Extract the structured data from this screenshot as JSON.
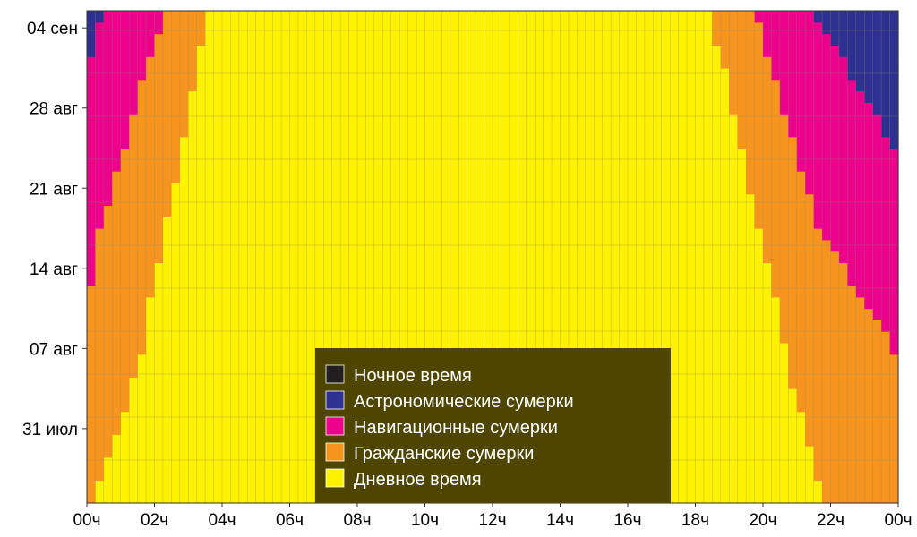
{
  "chart_data": {
    "type": "heatmap",
    "x_tick_labels": [
      "00ч",
      "02ч",
      "04ч",
      "06ч",
      "08ч",
      "10ч",
      "12ч",
      "14ч",
      "16ч",
      "18ч",
      "20ч",
      "22ч",
      "00ч"
    ],
    "y_tick_labels": [
      {
        "label": "31 июл",
        "day": 6
      },
      {
        "label": "07 авг",
        "day": 13
      },
      {
        "label": "14 авг",
        "day": 20
      },
      {
        "label": "21 авг",
        "day": 27
      },
      {
        "label": "28 авг",
        "day": 34
      },
      {
        "label": "04 сен",
        "day": 41
      }
    ],
    "date_range": {
      "start": "2024-07-25",
      "end": "2024-09-05"
    },
    "x_range_hours": [
      0,
      24
    ],
    "grid": true,
    "categories": [
      {
        "name": "Ночное время",
        "color": "#231f20"
      },
      {
        "name": "Астрономические сумерки",
        "color": "#2e3192"
      },
      {
        "name": "Навигационные сумерки",
        "color": "#ec008c"
      },
      {
        "name": "Гражданские сумерки",
        "color": "#f7941d"
      },
      {
        "name": "Дневное время",
        "color": "#fff200"
      }
    ],
    "boundaries_hours": [
      {
        "date": "2024-07-25",
        "sunrise": 0.2,
        "sunset": 21.8,
        "dawn_civil": 0.0,
        "dusk_civil": 24.0,
        "dawn_naut": 0.0,
        "dusk_naut": 24.0,
        "dawn_astro": 0.0,
        "dusk_astro": 24.0
      },
      {
        "date": "2024-07-30",
        "sunrise": 0.8,
        "sunset": 21.3,
        "dawn_civil": 0.0,
        "dusk_civil": 24.0,
        "dawn_naut": 0.0,
        "dusk_naut": 24.0,
        "dawn_astro": 0.0,
        "dusk_astro": 24.0
      },
      {
        "date": "2024-08-06",
        "sunrise": 1.6,
        "sunset": 20.7,
        "dawn_civil": 0.0,
        "dusk_civil": 24.0,
        "dawn_naut": 0.0,
        "dusk_naut": 24.0,
        "dawn_astro": 0.0,
        "dusk_astro": 24.0
      },
      {
        "date": "2024-08-10",
        "sunrise": 1.8,
        "sunset": 20.5,
        "dawn_civil": 0.0,
        "dusk_civil": 23.3,
        "dawn_naut": 0.0,
        "dusk_naut": 24.0,
        "dawn_astro": 0.0,
        "dusk_astro": 24.0
      },
      {
        "date": "2024-08-17",
        "sunrise": 2.3,
        "sunset": 19.9,
        "dawn_civil": 0.3,
        "dusk_civil": 21.7,
        "dawn_naut": 0.0,
        "dusk_naut": 24.0,
        "dawn_astro": 0.0,
        "dusk_astro": 24.0
      },
      {
        "date": "2024-08-24",
        "sunrise": 2.8,
        "sunset": 19.4,
        "dawn_civil": 1.1,
        "dusk_civil": 21.0,
        "dawn_naut": 0.0,
        "dusk_naut": 24.0,
        "dawn_astro": 0.0,
        "dusk_astro": 24.0
      },
      {
        "date": "2024-08-31",
        "sunrise": 3.2,
        "sunset": 18.9,
        "dawn_civil": 1.7,
        "dusk_civil": 20.3,
        "dawn_naut": 0.0,
        "dusk_naut": 22.6,
        "dawn_astro": 0.0,
        "dusk_astro": 24.0
      },
      {
        "date": "2024-09-05",
        "sunrise": 3.6,
        "sunset": 18.4,
        "dawn_civil": 2.3,
        "dusk_civil": 19.8,
        "dawn_naut": 0.4,
        "dusk_naut": 21.5,
        "dawn_astro": 0.0,
        "dusk_astro": 24.0
      }
    ],
    "legend_position": "bottom-center"
  }
}
